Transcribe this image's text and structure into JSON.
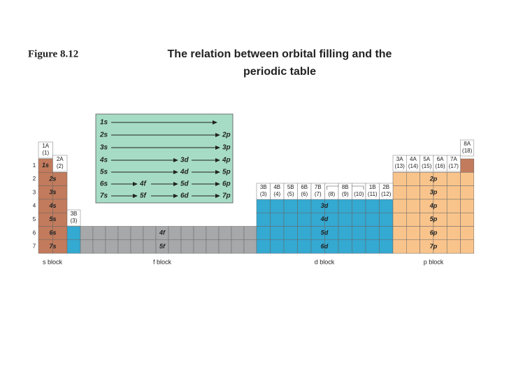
{
  "header": {
    "figure": "Figure 8.12",
    "title": [
      "The relation between orbital filling and the",
      "periodic table"
    ]
  },
  "filling_order": [
    [
      "1s"
    ],
    [
      "2s",
      "2p"
    ],
    [
      "3s",
      "3p"
    ],
    [
      "4s",
      "3d",
      "4p"
    ],
    [
      "5s",
      "4d",
      "5p"
    ],
    [
      "6s",
      "4f",
      "5d",
      "6p"
    ],
    [
      "7s",
      "5f",
      "6d",
      "7p"
    ]
  ],
  "periods": [
    "1",
    "2",
    "3",
    "4",
    "5",
    "6",
    "7"
  ],
  "groups": [
    {
      "label": "1A",
      "numbers": [
        "(1)"
      ]
    },
    {
      "label": "2A",
      "numbers": [
        "(2)"
      ]
    },
    {
      "label": "3B",
      "numbers": [
        "(3)"
      ]
    },
    {
      "label": "3B",
      "numbers": [
        "(3)"
      ]
    },
    {
      "label": "4B",
      "numbers": [
        "(4)"
      ]
    },
    {
      "label": "5B",
      "numbers": [
        "(5)"
      ]
    },
    {
      "label": "6B",
      "numbers": [
        "(6)"
      ]
    },
    {
      "label": "7B",
      "numbers": [
        "(7)"
      ]
    },
    {
      "label": "8B",
      "numbers": [
        "(8)",
        "(9)",
        "(10)"
      ]
    },
    {
      "label": "1B",
      "numbers": [
        "(11)"
      ]
    },
    {
      "label": "2B",
      "numbers": [
        "(12)"
      ]
    },
    {
      "label": "3A",
      "numbers": [
        "(13)"
      ]
    },
    {
      "label": "4A",
      "numbers": [
        "(14)"
      ]
    },
    {
      "label": "5A",
      "numbers": [
        "(15)"
      ]
    },
    {
      "label": "6A",
      "numbers": [
        "(16)"
      ]
    },
    {
      "label": "7A",
      "numbers": [
        "(17)"
      ]
    },
    {
      "label": "8A",
      "numbers": [
        "(18)"
      ]
    }
  ],
  "s_block_labels": [
    "1s",
    "2s",
    "3s",
    "4s",
    "5s",
    "6s",
    "7s"
  ],
  "f_block_labels": [
    "4f",
    "5f"
  ],
  "d_block_labels": [
    "3d",
    "4d",
    "5d",
    "6d"
  ],
  "p_block_labels": [
    "2p",
    "3p",
    "4p",
    "5p",
    "6p",
    "7p"
  ],
  "block_names": [
    "s block",
    "f block",
    "d block",
    "p block"
  ]
}
